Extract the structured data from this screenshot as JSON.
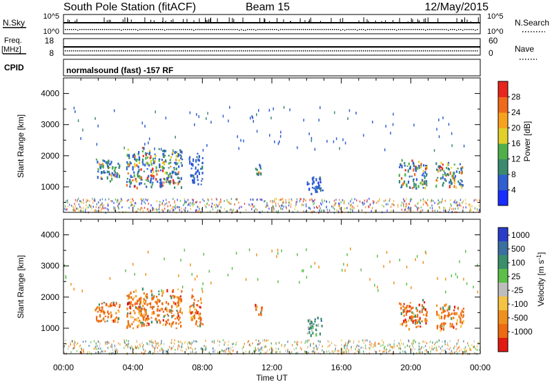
{
  "header": {
    "station": "South Pole Station (fitACF)",
    "beam": "Beam 15",
    "date": "12/May/2015"
  },
  "strip_panels": {
    "nsky": {
      "label": "N.Sky",
      "ticks": [
        "10^5",
        "10^0"
      ]
    },
    "nsearch": {
      "label": "N.Search",
      "ticks": [
        "10^5",
        "10^0"
      ]
    },
    "freq": {
      "label_line1": "Freq.",
      "label_line2": "[MHz]",
      "ticks": [
        "18",
        "8"
      ]
    },
    "nave": {
      "label": "Nave",
      "ticks": [
        "60",
        "0"
      ]
    },
    "cpid": {
      "label": "CPID",
      "text": "normalsound (fast) -157 RF"
    }
  },
  "chart_data": [
    {
      "type": "heatmap",
      "title": "",
      "ylabel": "Slant Range [km]",
      "xlabel": "",
      "xlim": [
        0,
        24
      ],
      "ylim": [
        180,
        4500
      ],
      "y_ticks": [
        1000,
        2000,
        3000,
        4000
      ],
      "colorbar": {
        "label": "Power [dB]",
        "ticks": [
          "4",
          "8",
          "12",
          "16",
          "20",
          "24",
          "28"
        ],
        "colors": [
          "#1a2cff",
          "#2f5fd0",
          "#3a8a70",
          "#4fb04a",
          "#e2d02a",
          "#f7a21f",
          "#f06a1c",
          "#e8261c"
        ]
      },
      "echo_regions_hours_km": [
        {
          "t": [
            1.8,
            3.2
          ],
          "r": [
            1100,
            1900
          ],
          "level": "mixed"
        },
        {
          "t": [
            3.6,
            6.8
          ],
          "r": [
            900,
            2300
          ],
          "level": "high"
        },
        {
          "t": [
            7.2,
            8.0
          ],
          "r": [
            1000,
            2100
          ],
          "level": "low"
        },
        {
          "t": [
            11.0,
            11.4
          ],
          "r": [
            1300,
            1800
          ],
          "level": "mixed"
        },
        {
          "t": [
            14.0,
            14.9
          ],
          "r": [
            700,
            1400
          ],
          "level": "low"
        },
        {
          "t": [
            19.3,
            20.9
          ],
          "r": [
            900,
            1900
          ],
          "level": "high"
        },
        {
          "t": [
            21.4,
            23.0
          ],
          "r": [
            900,
            1800
          ],
          "level": "high"
        }
      ]
    },
    {
      "type": "heatmap",
      "title": "",
      "ylabel": "Slant Range [km]",
      "xlabel": "Time UT",
      "xlim": [
        0,
        24
      ],
      "ylim": [
        180,
        4500
      ],
      "x_ticks": [
        "00:00",
        "04:00",
        "08:00",
        "12:00",
        "16:00",
        "20:00",
        "00:00"
      ],
      "y_ticks": [
        1000,
        2000,
        3000,
        4000
      ],
      "colorbar": {
        "label": "Velocity [m s^-1]",
        "ticks": [
          "1000",
          "500",
          "100",
          "25",
          "-25",
          "-100",
          "-500",
          "-1000"
        ],
        "colors": [
          "#2a3dc8",
          "#3a6fa0",
          "#3a8f6a",
          "#5cc048",
          "#bdbdbd",
          "#f5c242",
          "#f0901c",
          "#ee6a10",
          "#e21a12"
        ]
      },
      "echo_regions_hours_km": [
        {
          "t": [
            1.8,
            3.2
          ],
          "r": [
            1100,
            1900
          ],
          "level": "negative"
        },
        {
          "t": [
            3.6,
            6.8
          ],
          "r": [
            900,
            2300
          ],
          "level": "negative"
        },
        {
          "t": [
            7.2,
            8.0
          ],
          "r": [
            1000,
            2100
          ],
          "level": "negative"
        },
        {
          "t": [
            11.0,
            11.4
          ],
          "r": [
            1300,
            1800
          ],
          "level": "negative"
        },
        {
          "t": [
            14.0,
            14.9
          ],
          "r": [
            700,
            1400
          ],
          "level": "positive"
        },
        {
          "t": [
            19.3,
            20.9
          ],
          "r": [
            900,
            1900
          ],
          "level": "negative"
        },
        {
          "t": [
            21.4,
            23.0
          ],
          "r": [
            900,
            1800
          ],
          "level": "negative"
        }
      ]
    }
  ]
}
